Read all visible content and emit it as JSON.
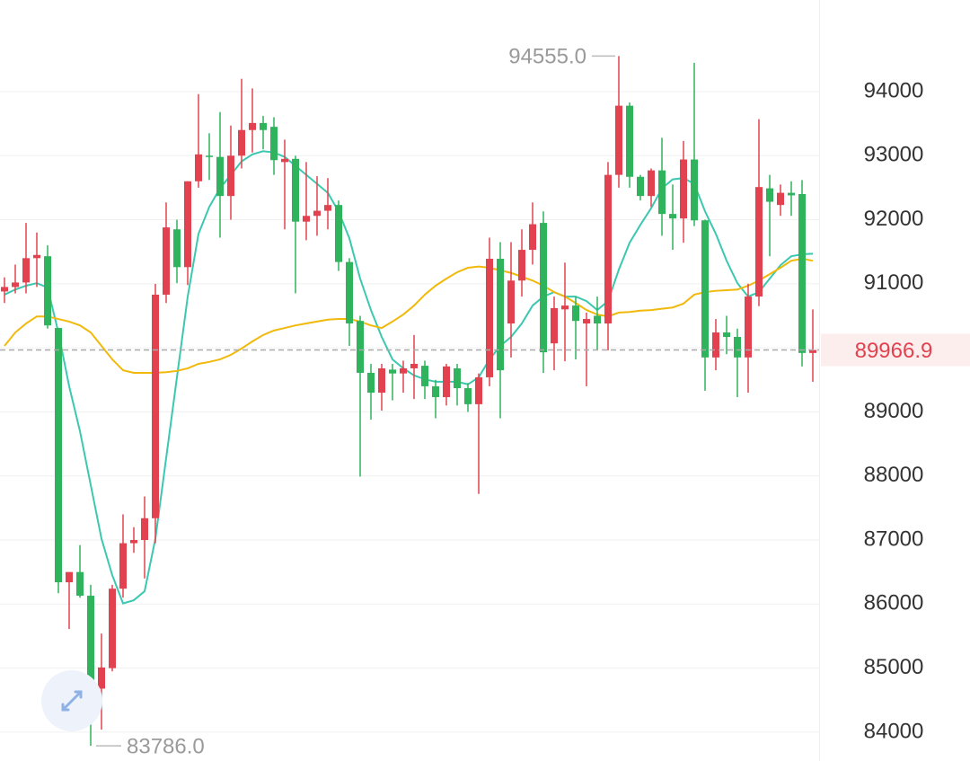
{
  "chart_data": {
    "type": "candlestick",
    "ylim": [
      83550,
      95430
    ],
    "yticks": [
      84000,
      85000,
      86000,
      87000,
      88000,
      89000,
      90000,
      91000,
      92000,
      93000,
      94000
    ],
    "grid": true,
    "up_color": "#e2424f",
    "down_color": "#2fb35c",
    "open": [
      90880,
      90950,
      91020,
      91400,
      91430,
      90310,
      86340,
      86500,
      86130,
      84680,
      85000,
      86240,
      86950,
      87000,
      87340,
      90830,
      91850,
      91260,
      92600,
      93000,
      92980,
      92370,
      93000,
      93400,
      93510,
      93450,
      92900,
      92950,
      91970,
      92060,
      92140,
      92230,
      91340,
      90420,
      89610,
      89300,
      89660,
      89600,
      89680,
      89720,
      89400,
      89230,
      89680,
      89370,
      89120,
      89540,
      91390,
      90380,
      91050,
      91530,
      91950,
      90070,
      90600,
      90660,
      90380,
      90500,
      90380,
      92700,
      93780,
      92670,
      92370,
      92770,
      92090,
      92020,
      92940,
      91990,
      89850,
      90240,
      90170,
      89850,
      90800,
      92490,
      92230,
      92420,
      92400,
      89920
    ],
    "high": [
      91100,
      91300,
      91950,
      91800,
      91600,
      90310,
      86500,
      86920,
      86300,
      85540,
      86300,
      87400,
      87200,
      87680,
      91000,
      92270,
      92000,
      92600,
      93960,
      93350,
      93680,
      93470,
      94200,
      94050,
      93620,
      93600,
      93250,
      93000,
      92900,
      92680,
      92650,
      92300,
      91400,
      90500,
      89750,
      89750,
      89750,
      89800,
      90200,
      89800,
      89500,
      89750,
      89750,
      89450,
      89600,
      91720,
      91650,
      91650,
      91850,
      92270,
      92130,
      90800,
      91330,
      90800,
      90550,
      90800,
      92900,
      94555,
      93830,
      92700,
      92800,
      93280,
      92550,
      93230,
      94450,
      92000,
      90450,
      90500,
      90300,
      91000,
      93570,
      92700,
      92550,
      92600,
      92620,
      90600
    ],
    "low": [
      90700,
      90850,
      90850,
      90950,
      90300,
      86170,
      85610,
      86100,
      83786,
      84040,
      84950,
      86100,
      86800,
      86400,
      86950,
      90700,
      91010,
      90980,
      92500,
      92620,
      91720,
      92000,
      92800,
      93050,
      93100,
      92700,
      91850,
      90850,
      91680,
      91750,
      91850,
      91200,
      90030,
      87990,
      88880,
      89020,
      89180,
      89300,
      89200,
      89200,
      88900,
      89100,
      89100,
      89000,
      87720,
      89400,
      88900,
      89850,
      90800,
      91300,
      89610,
      89650,
      89790,
      89820,
      89400,
      89960,
      89960,
      92500,
      92500,
      92300,
      92200,
      91750,
      91530,
      91640,
      91900,
      89330,
      89650,
      89900,
      89230,
      89300,
      90650,
      91430,
      92060,
      92060,
      89710,
      89470
    ],
    "close": [
      90950,
      91020,
      91400,
      91450,
      90350,
      86340,
      86500,
      86130,
      84680,
      85010,
      86240,
      86950,
      87000,
      87340,
      90830,
      91880,
      91260,
      92600,
      93020,
      92980,
      92370,
      93000,
      93400,
      93510,
      93400,
      92930,
      92950,
      91970,
      92060,
      92140,
      92230,
      91340,
      90380,
      89610,
      89300,
      89680,
      89600,
      89680,
      89750,
      89400,
      89230,
      89710,
      89370,
      89120,
      89540,
      91390,
      89650,
      91050,
      91530,
      91930,
      89930,
      90620,
      90660,
      90420,
      90450,
      90380,
      92700,
      93780,
      92670,
      92370,
      92770,
      92090,
      92020,
      92940,
      91990,
      89850,
      90240,
      90170,
      89850,
      90800,
      92510,
      92280,
      92420,
      92380,
      89920,
      89966.9
    ],
    "series": [
      {
        "color": "#3cc8b0",
        "values": [
          90830,
          90910,
          90970,
          91010,
          90940,
          90240,
          89400,
          88700,
          87860,
          87020,
          86450,
          86010,
          86060,
          86200,
          87020,
          88280,
          89540,
          90800,
          91780,
          92200,
          92490,
          92700,
          92910,
          93020,
          93070,
          93050,
          92980,
          92840,
          92700,
          92560,
          92420,
          92130,
          91710,
          91080,
          90590,
          90170,
          89820,
          89680,
          89570,
          89510,
          89470,
          89470,
          89470,
          89430,
          89540,
          89820,
          90030,
          90170,
          90380,
          90660,
          90800,
          90870,
          90800,
          90800,
          90730,
          90590,
          90730,
          91220,
          91640,
          91920,
          92180,
          92490,
          92630,
          92650,
          92560,
          92130,
          91780,
          91360,
          91010,
          90800,
          90870,
          91080,
          91290,
          91430,
          91460,
          91470
        ]
      },
      {
        "color": "#f0b90b",
        "values": [
          90030,
          90240,
          90380,
          90490,
          90490,
          90450,
          90410,
          90350,
          90240,
          90030,
          89820,
          89650,
          89610,
          89610,
          89610,
          89620,
          89640,
          89680,
          89750,
          89780,
          89820,
          89890,
          89990,
          90100,
          90200,
          90270,
          90310,
          90350,
          90380,
          90410,
          90440,
          90450,
          90450,
          90410,
          90350,
          90310,
          90410,
          90520,
          90660,
          90830,
          90970,
          91080,
          91180,
          91250,
          91270,
          91250,
          91210,
          91170,
          91110,
          91050,
          90970,
          90870,
          90800,
          90700,
          90590,
          90520,
          90490,
          90550,
          90560,
          90580,
          90590,
          90610,
          90630,
          90690,
          90830,
          90870,
          90890,
          90900,
          90910,
          90970,
          91050,
          91150,
          91250,
          91360,
          91390,
          91360
        ]
      }
    ],
    "annotations": [
      {
        "label": "94555.0",
        "value": 94555
      },
      {
        "label": "83786.0",
        "value": 83786
      }
    ],
    "current_price": {
      "label": "89966.9",
      "value": 89966.9
    }
  }
}
